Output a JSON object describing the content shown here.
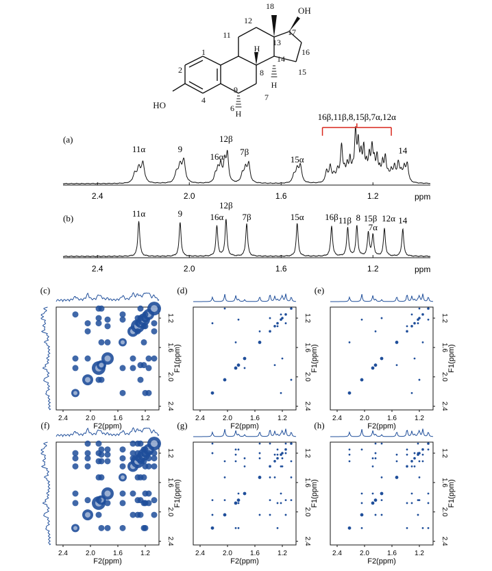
{
  "molecule": {
    "atom_numbers": [
      "1",
      "2",
      "4",
      "6",
      "7",
      "8",
      "9",
      "11",
      "12",
      "13",
      "14",
      "15",
      "16",
      "17",
      "18"
    ],
    "hydroxyl_left": "HO",
    "hydroxyl_right": "OH",
    "hydrogens": [
      "H",
      "H",
      "H"
    ]
  },
  "colors": {
    "spectrum": "#1f4e9a",
    "bracket": "#d9261c",
    "trace": "#111111"
  },
  "panel_a": {
    "label": "(a)",
    "bracket_label": "16β,11β,8,15β,7α,12α",
    "peak_labels": [
      {
        "text": "11α",
        "ppm": 2.22
      },
      {
        "text": "9",
        "ppm": 2.04
      },
      {
        "text": "16α",
        "ppm": 1.88
      },
      {
        "text": "12β",
        "ppm": 1.84
      },
      {
        "text": "7β",
        "ppm": 1.76
      },
      {
        "text": "15α",
        "ppm": 1.53
      },
      {
        "text": "14",
        "ppm": 1.07
      }
    ]
  },
  "panel_b": {
    "label": "(b)",
    "peak_labels": [
      {
        "text": "11α",
        "ppm": 2.22
      },
      {
        "text": "9",
        "ppm": 2.04
      },
      {
        "text": "16α",
        "ppm": 1.88
      },
      {
        "text": "12β",
        "ppm": 1.84
      },
      {
        "text": "7β",
        "ppm": 1.75
      },
      {
        "text": "15α",
        "ppm": 1.53
      },
      {
        "text": "16β",
        "ppm": 1.38
      },
      {
        "text": "11β",
        "ppm": 1.31
      },
      {
        "text": "8",
        "ppm": 1.27
      },
      {
        "text": "15β",
        "ppm": 1.22
      },
      {
        "text": "7α",
        "ppm": 1.2
      },
      {
        "text": "12α",
        "ppm": 1.15
      },
      {
        "text": "14",
        "ppm": 1.07
      }
    ]
  },
  "axis_1d": {
    "ticks": [
      "2.4",
      "2.0",
      "1.6",
      "1.2"
    ],
    "unit": "ppm"
  },
  "panels_2d": [
    {
      "label": "(c)",
      "style": "dense"
    },
    {
      "label": "(d)",
      "style": "sparse"
    },
    {
      "label": "(e)",
      "style": "sparse"
    },
    {
      "label": "(f)",
      "style": "dense_cross"
    },
    {
      "label": "(g)",
      "style": "sparse_cross"
    },
    {
      "label": "(h)",
      "style": "sparse_cross"
    }
  ],
  "axis_2d": {
    "ticks": [
      "2.4",
      "2.0",
      "1.6",
      "1.2"
    ],
    "xlabel": "F2(ppm)",
    "ylabel": "F1(ppm)"
  }
}
